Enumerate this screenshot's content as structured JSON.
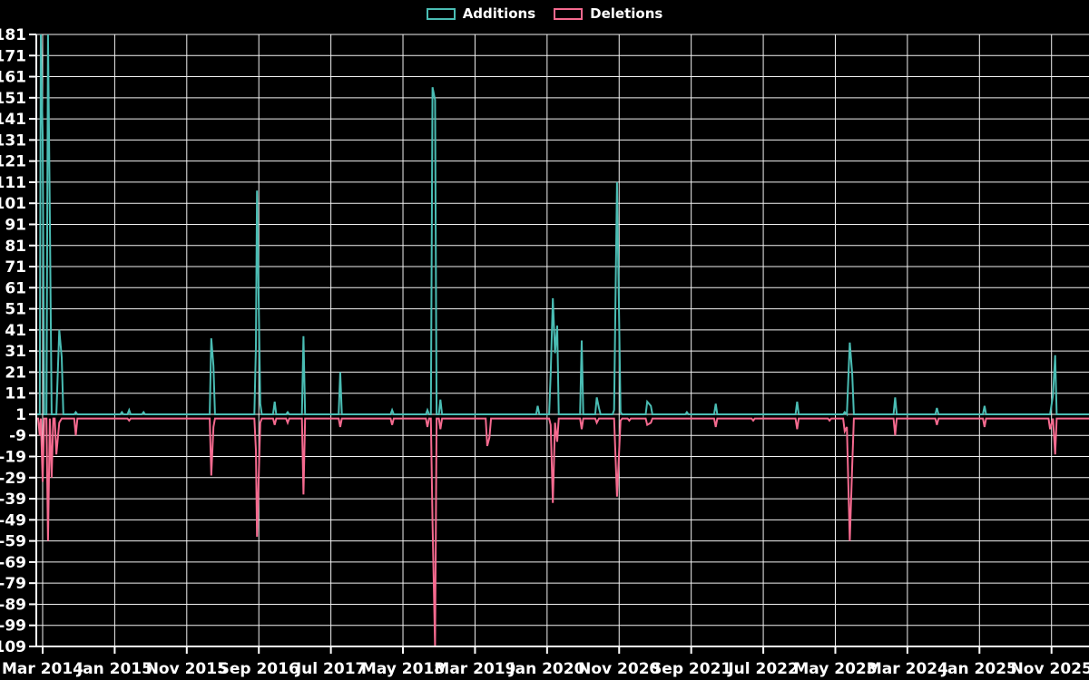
{
  "legend": {
    "items": [
      {
        "label": "Additions",
        "color": "#4abdb4"
      },
      {
        "label": "Deletions",
        "color": "#f56a8f"
      }
    ]
  },
  "chart_data": {
    "type": "line",
    "title": "",
    "xlabel": "",
    "ylabel": "",
    "background_color": "#000000",
    "grid": true,
    "grid_color": "#f2f2f2",
    "axis_color": "#ffffff",
    "label_color": "#ffffff",
    "legend_position": "top-center",
    "x_tick_labels": [
      "Mar 2014",
      "Jan 2015",
      "Nov 2015",
      "Sep 2016",
      "Jul 2017",
      "May 2018",
      "Mar 2019",
      "Jan 2020",
      "Nov 2020",
      "Sep 2021",
      "Jul 2022",
      "May 2023",
      "Mar 2024",
      "Jan 2025",
      "Nov 2025"
    ],
    "x_tick_months": [
      0,
      10,
      20,
      30,
      40,
      50,
      60,
      70,
      80,
      90,
      100,
      110,
      120,
      130,
      140
    ],
    "x_range_months": [
      -0.88,
      145.2
    ],
    "y_ticks": [
      181,
      171,
      161,
      151,
      141,
      131,
      121,
      111,
      101,
      91,
      81,
      71,
      61,
      51,
      41,
      31,
      21,
      11,
      1,
      -9,
      -19,
      -29,
      -39,
      -49,
      -59,
      -69,
      -79,
      -89,
      -99,
      -109
    ],
    "y_range": [
      -109,
      181
    ],
    "series": [
      {
        "name": "Additions",
        "color": "#4abdb4",
        "baseline": 1
      },
      {
        "name": "Deletions",
        "color": "#f56a8f",
        "baseline": -1
      }
    ],
    "events_note": "spikes as [months since Mar 2014, additions, deletions]; flat baseline of +1/-1 between events",
    "events": [
      [
        -0.4,
        1,
        -9
      ],
      [
        -0.25,
        181,
        -1
      ],
      [
        0.0,
        133,
        -31
      ],
      [
        0.75,
        181,
        -59
      ],
      [
        1.0,
        96,
        -1
      ],
      [
        1.25,
        1,
        -29
      ],
      [
        1.9,
        1,
        -18
      ],
      [
        2.3,
        41,
        -3
      ],
      [
        2.65,
        28,
        -1
      ],
      [
        4.6,
        2,
        -9
      ],
      [
        11.0,
        2,
        -1
      ],
      [
        12.0,
        3,
        -2
      ],
      [
        14.0,
        2,
        -1
      ],
      [
        23.4,
        37,
        -28
      ],
      [
        23.7,
        24,
        -5
      ],
      [
        29.6,
        33,
        -16
      ],
      [
        29.75,
        107,
        -57
      ],
      [
        30.2,
        6,
        -3
      ],
      [
        32.2,
        7,
        -4
      ],
      [
        34.0,
        2,
        -3
      ],
      [
        36.2,
        38,
        -37
      ],
      [
        41.3,
        21,
        -5
      ],
      [
        48.5,
        3,
        -4
      ],
      [
        53.4,
        3,
        -5
      ],
      [
        54.1,
        156,
        -50
      ],
      [
        54.45,
        150,
        -109
      ],
      [
        55.2,
        8,
        -6
      ],
      [
        61.7,
        1,
        -14
      ],
      [
        62.0,
        1,
        -10
      ],
      [
        68.7,
        5,
        -1
      ],
      [
        70.5,
        20,
        -4
      ],
      [
        70.8,
        56,
        -41
      ],
      [
        71.1,
        30,
        -3
      ],
      [
        71.4,
        43,
        -12
      ],
      [
        74.8,
        36,
        -6
      ],
      [
        76.9,
        9,
        -3
      ],
      [
        77.2,
        4,
        -1
      ],
      [
        79.3,
        3,
        -1
      ],
      [
        79.7,
        111,
        -38
      ],
      [
        80.2,
        2,
        -2
      ],
      [
        81.4,
        1,
        -2
      ],
      [
        83.9,
        7,
        -4
      ],
      [
        84.4,
        5,
        -3
      ],
      [
        89.4,
        2,
        -1
      ],
      [
        93.4,
        6,
        -5
      ],
      [
        98.6,
        1,
        -2
      ],
      [
        104.7,
        7,
        -6
      ],
      [
        109.2,
        1,
        -2
      ],
      [
        111.3,
        2,
        -7
      ],
      [
        111.6,
        1,
        -5
      ],
      [
        112.0,
        35,
        -59
      ],
      [
        112.35,
        20,
        -23
      ],
      [
        118.3,
        9,
        -9
      ],
      [
        124.1,
        4,
        -4
      ],
      [
        130.7,
        5,
        -5
      ],
      [
        139.8,
        1,
        -6
      ],
      [
        140.2,
        10,
        -1
      ],
      [
        140.5,
        29,
        -18
      ]
    ]
  }
}
